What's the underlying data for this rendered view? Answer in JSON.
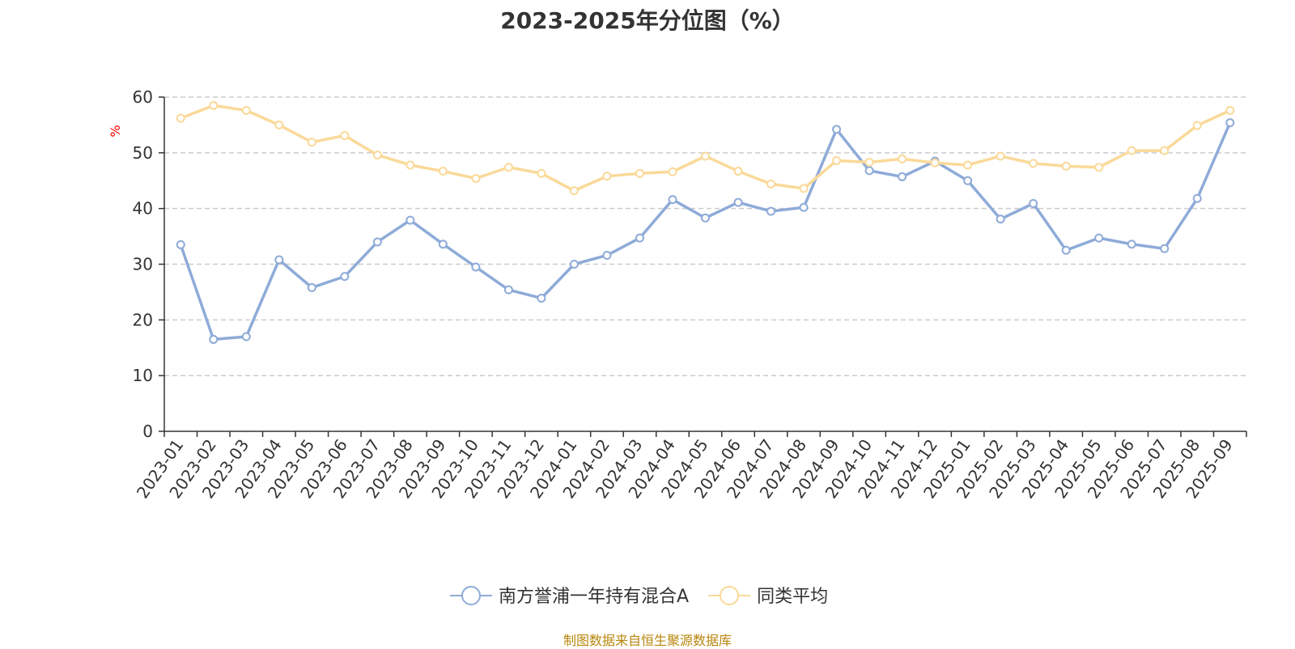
{
  "title": "2023-2025年分位图（%）",
  "source": "制图数据来自恒生聚源数据库",
  "chart_data": {
    "type": "line",
    "title": "2023-2025年分位图（%）",
    "xlabel": "",
    "ylabel": "%",
    "ylim": [
      0,
      60
    ],
    "yticks": [
      0,
      10,
      20,
      30,
      40,
      50,
      60
    ],
    "grid": true,
    "legend_position": "bottom",
    "categories": [
      "2023-01",
      "2023-02",
      "2023-03",
      "2023-04",
      "2023-05",
      "2023-06",
      "2023-07",
      "2023-08",
      "2023-09",
      "2023-10",
      "2023-11",
      "2023-12",
      "2024-01",
      "2024-02",
      "2024-03",
      "2024-04",
      "2024-05",
      "2024-06",
      "2024-07",
      "2024-08",
      "2024-09",
      "2024-10",
      "2024-11",
      "2024-12",
      "2025-01",
      "2025-02",
      "2025-03",
      "2025-04",
      "2025-05",
      "2025-06",
      "2025-07",
      "2025-08",
      "2025-09"
    ],
    "series": [
      {
        "name": "南方誉浦一年持有混合A",
        "color": "#8eabd8",
        "values": [
          33.5,
          16.5,
          17.0,
          30.8,
          25.8,
          27.8,
          34.0,
          37.9,
          33.6,
          29.5,
          25.4,
          23.9,
          30.0,
          31.6,
          34.7,
          41.6,
          38.3,
          41.1,
          39.5,
          40.2,
          54.2,
          46.8,
          45.7,
          48.5,
          45.0,
          38.1,
          40.9,
          32.5,
          34.7,
          33.6,
          32.8,
          41.8,
          55.4
        ]
      },
      {
        "name": "同类平均",
        "color": "#fad999",
        "values": [
          56.2,
          58.5,
          57.6,
          55.0,
          51.9,
          53.1,
          49.6,
          47.8,
          46.7,
          45.4,
          47.4,
          46.3,
          43.2,
          45.8,
          46.3,
          46.6,
          49.4,
          46.7,
          44.4,
          43.6,
          48.6,
          48.3,
          48.9,
          48.2,
          47.8,
          49.4,
          48.1,
          47.6,
          47.4,
          50.4,
          50.4,
          54.9,
          57.6
        ]
      }
    ]
  }
}
